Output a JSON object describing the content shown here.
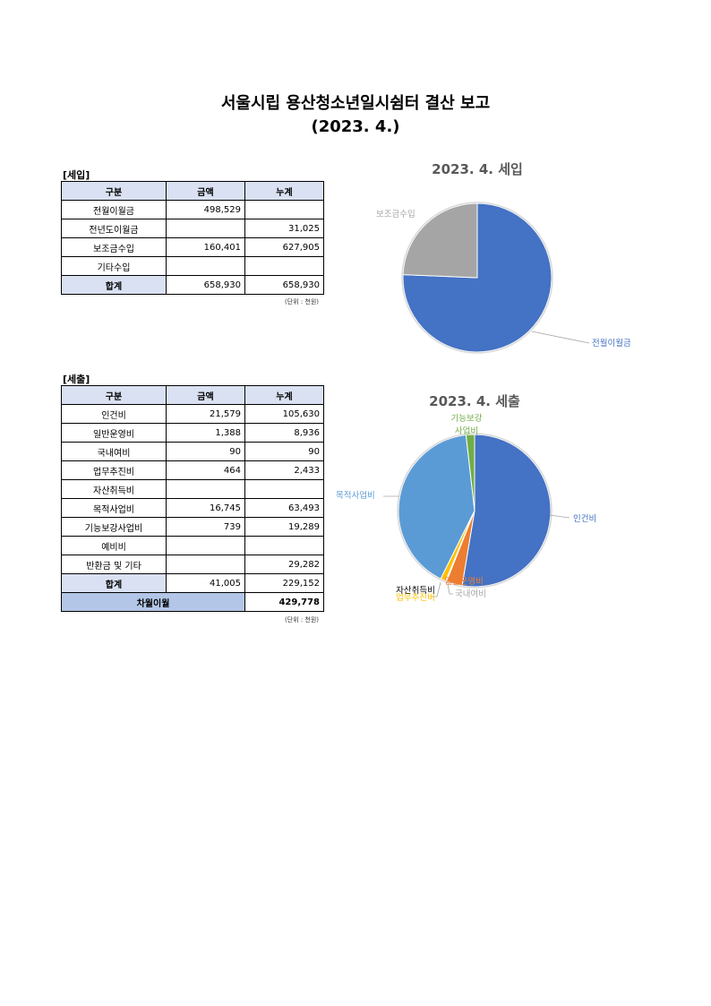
{
  "title": "서울시립 용산청소년일시쉼터 결산 보고",
  "subtitle": "(2023. 4.)",
  "income": {
    "label": "[세입]",
    "headers": [
      "구분",
      "금액",
      "누계"
    ],
    "rows": [
      {
        "item": "전월이월금",
        "amount": "498,529",
        "cumulative": ""
      },
      {
        "item": "전년도이월금",
        "amount": "",
        "cumulative": "31,025"
      },
      {
        "item": "보조금수입",
        "amount": "160,401",
        "cumulative": "627,905"
      },
      {
        "item": "기타수입",
        "amount": "",
        "cumulative": ""
      }
    ],
    "total": {
      "item": "합계",
      "amount": "658,930",
      "cumulative": "658,930"
    },
    "unit": "(단위 : 천원)"
  },
  "expense": {
    "label": "[세출]",
    "headers": [
      "구분",
      "금액",
      "누계"
    ],
    "rows": [
      {
        "item": "인건비",
        "amount": "21,579",
        "cumulative": "105,630"
      },
      {
        "item": "일반운영비",
        "amount": "1,388",
        "cumulative": "8,936"
      },
      {
        "item": "국내여비",
        "amount": "90",
        "cumulative": "90"
      },
      {
        "item": "업무추진비",
        "amount": "464",
        "cumulative": "2,433"
      },
      {
        "item": "자산취득비",
        "amount": "",
        "cumulative": ""
      },
      {
        "item": "목적사업비",
        "amount": "16,745",
        "cumulative": "63,493"
      },
      {
        "item": "기능보강사업비",
        "amount": "739",
        "cumulative": "19,289"
      },
      {
        "item": "예비비",
        "amount": "",
        "cumulative": ""
      },
      {
        "item": "반환금 및 기타",
        "amount": "",
        "cumulative": "29,282"
      }
    ],
    "total": {
      "item": "합계",
      "amount": "41,005",
      "cumulative": "229,152"
    },
    "carryover": {
      "item": "차월이월",
      "value": "429,778"
    },
    "unit": "(단위 : 천원)"
  },
  "chart_data": [
    {
      "type": "pie",
      "title": "2023. 4. 세입",
      "categories": [
        "전월이월금",
        "보조금수입"
      ],
      "values": [
        498529,
        160401
      ],
      "colors": [
        "#4472c4",
        "#a5a5a5"
      ]
    },
    {
      "type": "pie",
      "title": "2023. 4. 세출",
      "categories": [
        "인건비",
        "일반운영비",
        "국내여비",
        "업무추진비",
        "자산취득비",
        "목적사업비",
        "기능보강사업비"
      ],
      "values": [
        21579,
        1388,
        90,
        464,
        0,
        16745,
        739
      ],
      "colors": [
        "#4472c4",
        "#ed7d31",
        "#a5a5a5",
        "#ffc000",
        "#000000",
        "#5b9bd5",
        "#70ad47"
      ]
    }
  ]
}
